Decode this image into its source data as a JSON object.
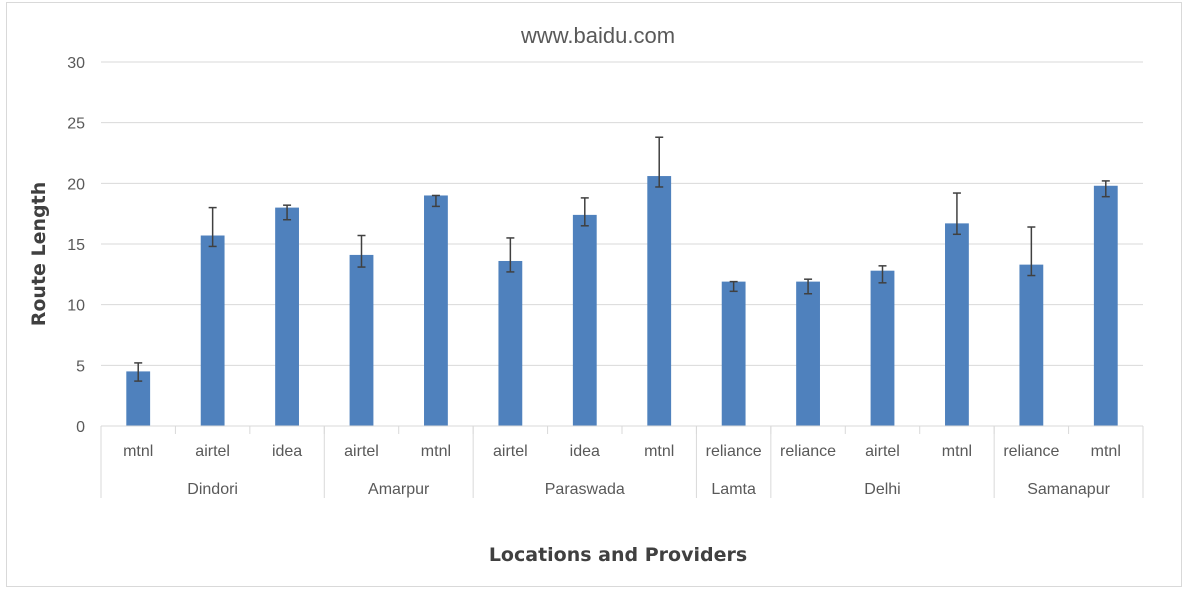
{
  "chart_data": {
    "type": "bar",
    "title": "www.baidu.com",
    "xlabel": "Locations and Providers",
    "ylabel": "Route Length",
    "ylim": [
      0,
      30
    ],
    "yticks": [
      0,
      5,
      10,
      15,
      20,
      25,
      30
    ],
    "grid": true,
    "legend": "none",
    "bar_color": "#4f81bd",
    "groups": [
      {
        "name": "Dindori",
        "items": [
          {
            "provider": "mtnl",
            "value": 4.5,
            "err_low": 3.7,
            "err_high": 5.2
          },
          {
            "provider": "airtel",
            "value": 15.7,
            "err_low": 14.8,
            "err_high": 18.0
          },
          {
            "provider": "idea",
            "value": 18.0,
            "err_low": 17.0,
            "err_high": 18.2
          }
        ]
      },
      {
        "name": "Amarpur",
        "items": [
          {
            "provider": "airtel",
            "value": 14.1,
            "err_low": 13.1,
            "err_high": 15.7
          },
          {
            "provider": "mtnl",
            "value": 19.0,
            "err_low": 18.1,
            "err_high": 19.0
          }
        ]
      },
      {
        "name": "Paraswada",
        "items": [
          {
            "provider": "airtel",
            "value": 13.6,
            "err_low": 12.7,
            "err_high": 15.5
          },
          {
            "provider": "idea",
            "value": 17.4,
            "err_low": 16.5,
            "err_high": 18.8
          },
          {
            "provider": "mtnl",
            "value": 20.6,
            "err_low": 19.7,
            "err_high": 23.8
          }
        ]
      },
      {
        "name": "Lamta",
        "items": [
          {
            "provider": "reliance",
            "value": 11.9,
            "err_low": 11.1,
            "err_high": 11.9
          }
        ]
      },
      {
        "name": "Delhi",
        "items": [
          {
            "provider": "reliance",
            "value": 11.9,
            "err_low": 10.9,
            "err_high": 12.1
          },
          {
            "provider": "airtel",
            "value": 12.8,
            "err_low": 11.8,
            "err_high": 13.2
          },
          {
            "provider": "mtnl",
            "value": 16.7,
            "err_low": 15.8,
            "err_high": 19.2
          }
        ]
      },
      {
        "name": "Samanapur",
        "items": [
          {
            "provider": "reliance",
            "value": 13.3,
            "err_low": 12.4,
            "err_high": 16.4
          },
          {
            "provider": "mtnl",
            "value": 19.8,
            "err_low": 18.9,
            "err_high": 20.2
          }
        ]
      }
    ]
  }
}
